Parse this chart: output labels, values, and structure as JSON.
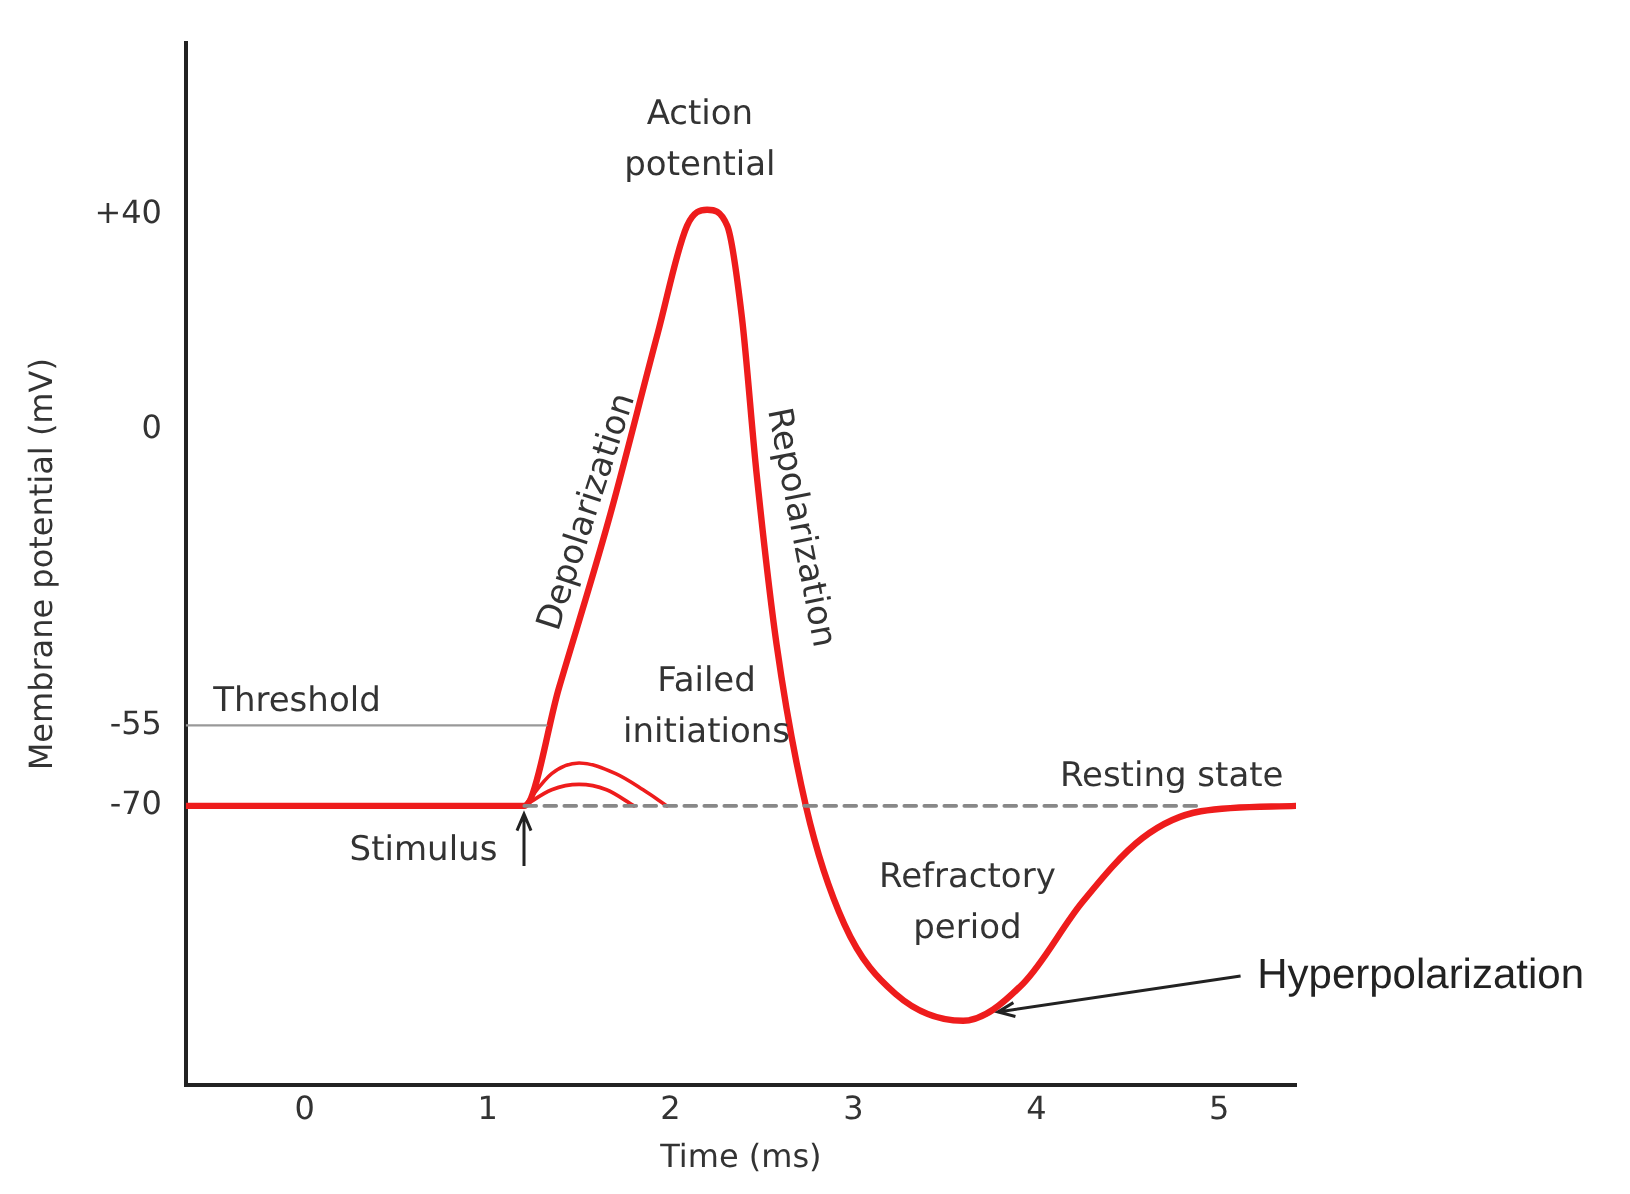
{
  "chart_data": {
    "type": "line",
    "xlabel": "Time (ms)",
    "ylabel": "Membrane potential (mV)",
    "xlim": [
      -0.65,
      5.42
    ],
    "xticks": [
      0,
      1,
      2,
      3,
      4,
      5
    ],
    "ylim": [
      -122,
      72
    ],
    "yticks": [
      {
        "value": 40,
        "label": "+40"
      },
      0,
      -55,
      -70
    ],
    "grid": false,
    "legend": false,
    "marker": "none",
    "series": [
      {
        "color": "#999999",
        "x": [
          -0.65,
          1.32
        ],
        "values": [
          -55,
          -55
        ]
      },
      {
        "color": "#888888",
        "line_style": "dashed",
        "x": [
          1.2,
          4.9
        ],
        "values": [
          -70,
          -70
        ]
      },
      {
        "color": "#ee1c1c",
        "x": [
          -0.65,
          1.2,
          1.39,
          1.66,
          1.93,
          2.09,
          2.2,
          2.31,
          2.39,
          2.47,
          2.58,
          2.74,
          2.95,
          3.23,
          3.6,
          3.93,
          4.25,
          4.58,
          4.9,
          5.42
        ],
        "values": [
          -70,
          -70,
          -48,
          -17,
          18,
          38,
          41,
          38,
          21,
          -8,
          -40,
          -70,
          -92,
          -105,
          -110,
          -103,
          -88,
          -76,
          -71,
          -70
        ]
      },
      {
        "color": "#ee1c1c",
        "x": [
          1.2,
          1.35,
          1.5,
          1.7,
          1.85,
          1.98
        ],
        "values": [
          -70,
          -64,
          -62,
          -64,
          -67,
          -70
        ]
      },
      {
        "color": "#ee1c1c",
        "x": [
          1.2,
          1.35,
          1.5,
          1.65,
          1.8
        ],
        "values": [
          -70,
          -67,
          -66,
          -67,
          -70
        ]
      }
    ],
    "annotations": [
      "Action potential",
      "Depolarization",
      "Repolarization",
      "Threshold",
      "Failed initiations",
      "Resting state",
      "Stimulus",
      "Refractory period",
      {
        "text": "Hyperpolarization",
        "x": 3.75,
        "y": -108
      }
    ]
  }
}
